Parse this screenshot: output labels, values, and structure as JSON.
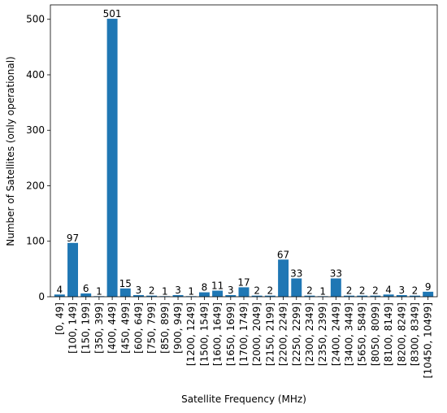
{
  "chart_data": {
    "type": "bar",
    "title": "",
    "xlabel": "Satellite Frequency (MHz)",
    "ylabel": "Number of Satellites (only operational)",
    "ylim": [
      0,
      526
    ],
    "yticks": [
      0,
      100,
      200,
      300,
      400,
      500
    ],
    "grid": false,
    "bar_color": "#1f77b4",
    "categories": [
      "[0, 49]",
      "[100, 149]",
      "[150, 199]",
      "[350, 399]",
      "[400, 449]",
      "[450, 499]",
      "[600, 649]",
      "[750, 799]",
      "[850, 899]",
      "[900, 949]",
      "[1200, 1249]",
      "[1500, 1549]",
      "[1600, 1649]",
      "[1650, 1699]",
      "[1700, 1749]",
      "[2000, 2049]",
      "[2150, 2199]",
      "[2200, 2249]",
      "[2250, 2299]",
      "[2300, 2349]",
      "[2350, 2399]",
      "[2400, 2449]",
      "[3400, 3449]",
      "[5650, 5849]",
      "[8050, 8099]",
      "[8100, 8149]",
      "[8200, 8249]",
      "[8300, 8349]",
      "[10450, 10499]"
    ],
    "values": [
      4,
      97,
      6,
      1,
      501,
      15,
      3,
      2,
      1,
      3,
      1,
      8,
      11,
      3,
      17,
      2,
      2,
      67,
      33,
      2,
      1,
      33,
      2,
      2,
      2,
      4,
      3,
      2,
      9
    ]
  }
}
